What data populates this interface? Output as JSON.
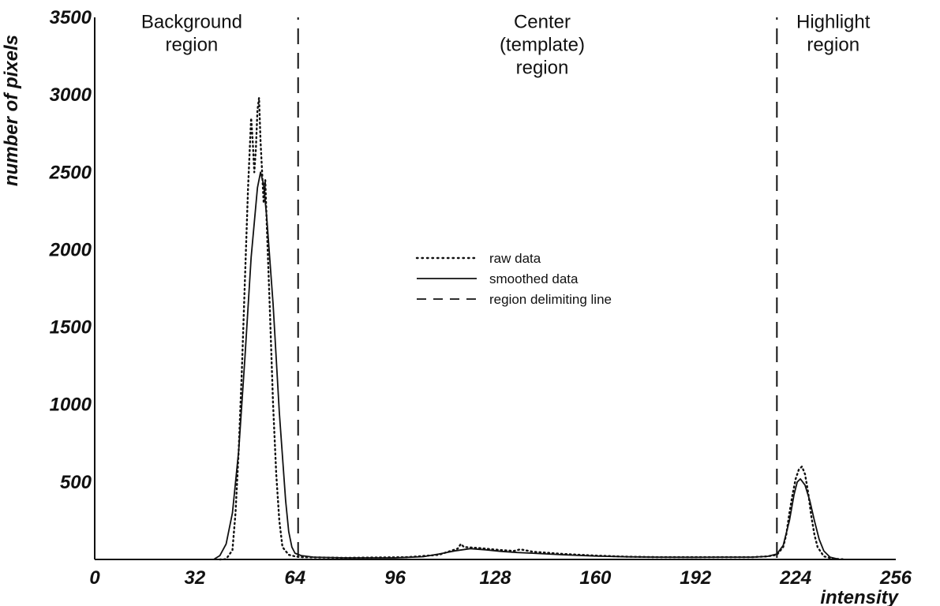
{
  "chart_data": {
    "type": "line",
    "xlabel": "intensity",
    "ylabel": "number of pixels",
    "xlim": [
      0,
      256
    ],
    "ylim": [
      0,
      3500
    ],
    "x_ticks": [
      0,
      32,
      64,
      96,
      128,
      160,
      192,
      224,
      256
    ],
    "x_tick_labels": [
      "0",
      "32",
      "64",
      "96",
      "128",
      "160",
      "192",
      "224",
      "256"
    ],
    "y_ticks": [
      500,
      1000,
      1500,
      2000,
      2500,
      3000,
      3500
    ],
    "y_tick_labels": [
      "500",
      "1000",
      "1500",
      "2000",
      "2500",
      "3000",
      "3500"
    ],
    "grid": false,
    "legend_position": "center",
    "series": [
      {
        "name": "raw data",
        "style": "dotted",
        "points": [
          [
            40,
            0
          ],
          [
            42,
            2
          ],
          [
            44,
            60
          ],
          [
            45,
            300
          ],
          [
            46,
            700
          ],
          [
            47,
            1200
          ],
          [
            48,
            1800
          ],
          [
            49,
            2400
          ],
          [
            50,
            2850
          ],
          [
            50.5,
            2700
          ],
          [
            51,
            2500
          ],
          [
            51.5,
            2650
          ],
          [
            52,
            2900
          ],
          [
            52.5,
            2980
          ],
          [
            53,
            2700
          ],
          [
            53.5,
            2500
          ],
          [
            54,
            2300
          ],
          [
            54.5,
            2450
          ],
          [
            55,
            2150
          ],
          [
            56,
            1600
          ],
          [
            57,
            1000
          ],
          [
            58,
            550
          ],
          [
            59,
            250
          ],
          [
            60,
            80
          ],
          [
            62,
            30
          ],
          [
            64,
            20
          ],
          [
            66,
            15
          ],
          [
            80,
            10
          ],
          [
            100,
            15
          ],
          [
            110,
            30
          ],
          [
            116,
            70
          ],
          [
            117,
            100
          ],
          [
            118,
            80
          ],
          [
            122,
            75
          ],
          [
            130,
            60
          ],
          [
            134,
            55
          ],
          [
            136,
            65
          ],
          [
            140,
            50
          ],
          [
            150,
            35
          ],
          [
            160,
            25
          ],
          [
            170,
            18
          ],
          [
            180,
            15
          ],
          [
            192,
            15
          ],
          [
            200,
            15
          ],
          [
            210,
            15
          ],
          [
            215,
            20
          ],
          [
            218,
            30
          ],
          [
            220,
            80
          ],
          [
            221,
            160
          ],
          [
            222,
            300
          ],
          [
            223,
            420
          ],
          [
            224,
            520
          ],
          [
            225,
            580
          ],
          [
            226,
            600
          ],
          [
            227,
            550
          ],
          [
            228,
            430
          ],
          [
            229,
            280
          ],
          [
            230,
            160
          ],
          [
            231,
            80
          ],
          [
            233,
            20
          ],
          [
            236,
            5
          ],
          [
            240,
            0
          ]
        ]
      },
      {
        "name": "smoothed data",
        "style": "solid",
        "points": [
          [
            38,
            0
          ],
          [
            40,
            25
          ],
          [
            42,
            100
          ],
          [
            44,
            300
          ],
          [
            46,
            700
          ],
          [
            48,
            1300
          ],
          [
            50,
            1950
          ],
          [
            52,
            2400
          ],
          [
            53,
            2500
          ],
          [
            54,
            2420
          ],
          [
            55,
            2200
          ],
          [
            57,
            1650
          ],
          [
            59,
            950
          ],
          [
            61,
            380
          ],
          [
            62,
            180
          ],
          [
            63,
            80
          ],
          [
            64,
            40
          ],
          [
            66,
            25
          ],
          [
            70,
            15
          ],
          [
            80,
            10
          ],
          [
            96,
            10
          ],
          [
            105,
            18
          ],
          [
            110,
            35
          ],
          [
            115,
            55
          ],
          [
            120,
            70
          ],
          [
            125,
            62
          ],
          [
            130,
            52
          ],
          [
            135,
            45
          ],
          [
            140,
            40
          ],
          [
            150,
            30
          ],
          [
            160,
            22
          ],
          [
            170,
            17
          ],
          [
            180,
            15
          ],
          [
            192,
            14
          ],
          [
            200,
            15
          ],
          [
            210,
            15
          ],
          [
            215,
            20
          ],
          [
            218,
            35
          ],
          [
            220,
            90
          ],
          [
            222,
            250
          ],
          [
            223.5,
            420
          ],
          [
            224.5,
            500
          ],
          [
            225.5,
            520
          ],
          [
            227,
            480
          ],
          [
            228.5,
            380
          ],
          [
            230,
            250
          ],
          [
            231.5,
            130
          ],
          [
            233,
            55
          ],
          [
            235,
            15
          ],
          [
            238,
            0
          ]
        ]
      }
    ],
    "region_lines": [
      65,
      218
    ],
    "region_line_name": "region delimiting line",
    "region_labels": [
      {
        "lines": [
          "Background",
          "region"
        ],
        "x": 31,
        "y": 3430
      },
      {
        "lines": [
          "Center",
          "(template)",
          "region"
        ],
        "x": 143,
        "y": 3430
      },
      {
        "lines": [
          "Highlight",
          "region"
        ],
        "x": 236,
        "y": 3430
      }
    ],
    "legend": [
      "raw data",
      "smoothed data",
      "region delimiting line"
    ]
  }
}
